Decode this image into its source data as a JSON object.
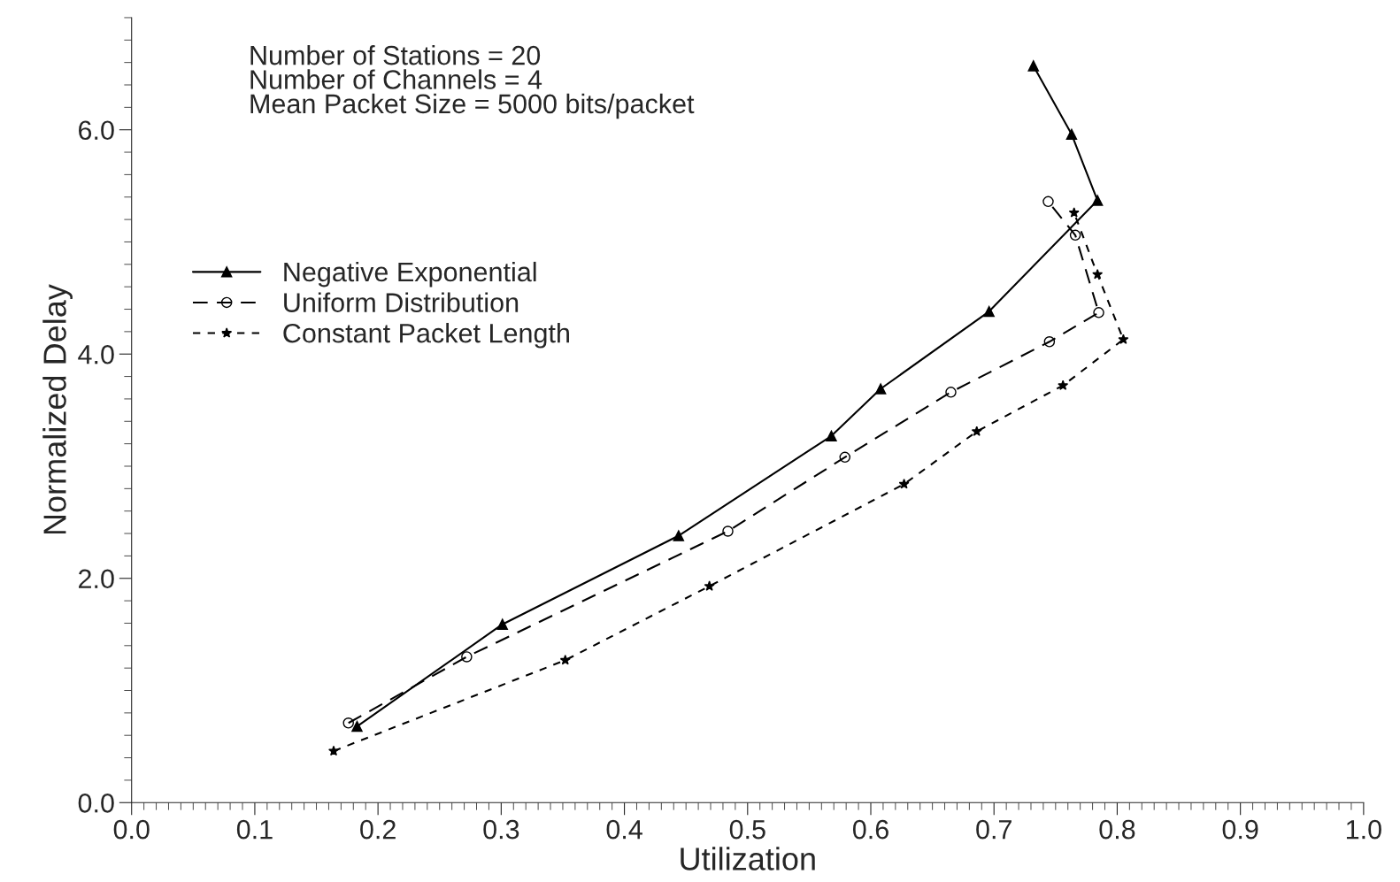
{
  "chart_data": {
    "type": "line",
    "xlabel": "Utilization",
    "ylabel": "Normalized Delay",
    "xlim": [
      0.0,
      1.0
    ],
    "xticks": [
      {
        "value": 0.0,
        "label": "0.0"
      },
      0.1,
      0.2,
      0.3,
      0.4,
      0.5,
      0.6,
      0.7,
      0.8,
      0.9,
      {
        "value": 1.0,
        "label": "1.0"
      }
    ],
    "ylim": [
      0.0,
      7.0
    ],
    "yticks": [
      {
        "value": 0.0,
        "label": "0.0"
      },
      {
        "value": 2.0,
        "label": "2.0"
      },
      {
        "value": 4.0,
        "label": "4.0"
      },
      {
        "value": 6.0,
        "label": "6.0"
      }
    ],
    "grid": false,
    "legend": "upper left",
    "annotations": [
      "Number of Stations = 20\nNumber of Channels = 4\nMean Packet Size = 5000 bits/packet"
    ],
    "series": [
      {
        "name": "Negative Exponential",
        "color": "#000000",
        "marker": "triangle",
        "line_style": "solid",
        "x": [
          0.183,
          0.301,
          0.444,
          0.568,
          0.608,
          0.696,
          0.784,
          0.763,
          0.732
        ],
        "values": [
          0.68,
          1.59,
          2.38,
          3.27,
          3.69,
          4.38,
          5.37,
          5.96,
          6.57
        ]
      },
      {
        "name": "Uniform Distribution",
        "color": "#000000",
        "marker": "circle",
        "line_style": "dashed",
        "x": [
          0.176,
          0.272,
          0.484,
          0.579,
          0.665,
          0.745,
          0.785,
          0.766,
          0.744
        ],
        "values": [
          0.71,
          1.3,
          2.42,
          3.08,
          3.66,
          4.11,
          4.37,
          5.06,
          5.36
        ]
      },
      {
        "name": "Constant Packet Length",
        "color": "#000000",
        "marker": "star",
        "line_style": "dotted",
        "x": [
          0.164,
          0.352,
          0.469,
          0.627,
          0.686,
          0.756,
          0.805,
          0.784,
          0.765
        ],
        "values": [
          0.46,
          1.27,
          1.93,
          2.84,
          3.31,
          3.72,
          4.13,
          4.71,
          5.26
        ]
      }
    ]
  }
}
